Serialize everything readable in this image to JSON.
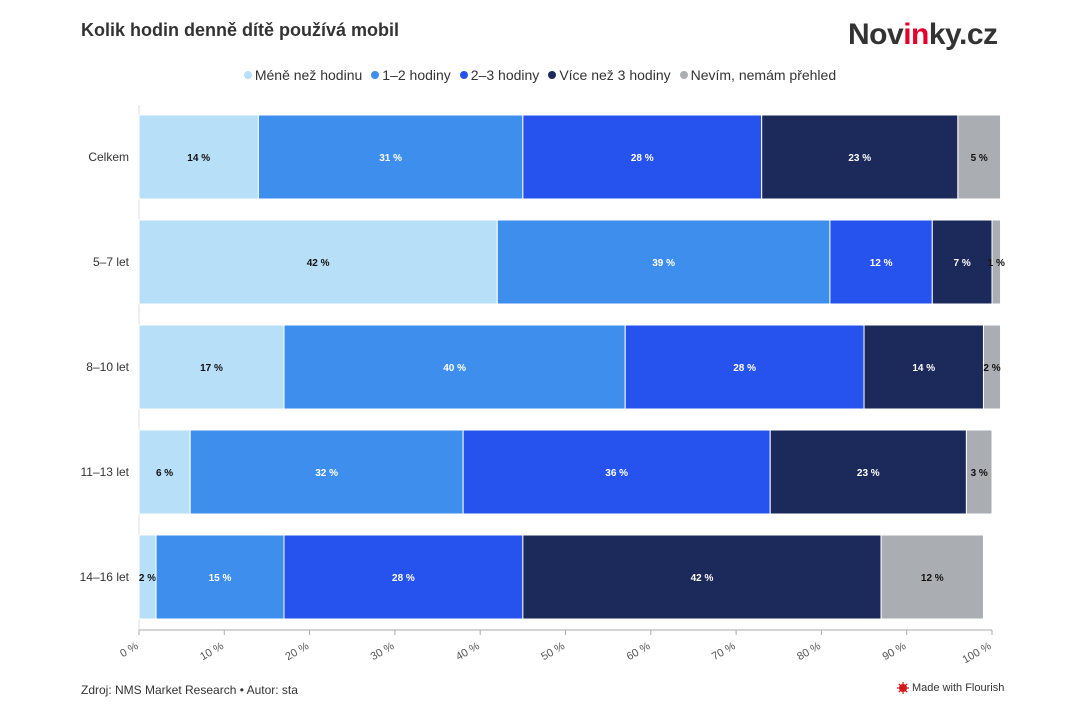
{
  "title": "Kolik hodin denně dítě používá mobil",
  "brand": {
    "prefix": "Nov",
    "accent": "in",
    "suffix": "ky.cz"
  },
  "source": "Zdroj: NMS Market Research • Autor: sta",
  "made_with": "Made with Flourish",
  "colors": {
    "text": "#333333",
    "axis": "#aaaaaa",
    "grid": "#e6e6e6",
    "brand_accent": "#e4002b"
  },
  "chart_data": {
    "type": "bar",
    "orientation": "horizontal",
    "stacked": true,
    "title": "Kolik hodin denně dítě používá mobil",
    "categories": [
      "Celkem",
      "5–7 let",
      "8–10 let",
      "11–13 let",
      "14–16 let"
    ],
    "xlim": [
      0,
      100
    ],
    "x_ticks": [
      "0 %",
      "10 %",
      "20 %",
      "30 %",
      "40 %",
      "50 %",
      "60 %",
      "70 %",
      "80 %",
      "90 %",
      "100 %"
    ],
    "legend_position": "top",
    "grid": false,
    "series": [
      {
        "name": "Méně než hodinu",
        "color": "#b7dff7",
        "label_color": "#111111",
        "values": [
          14,
          42,
          17,
          6,
          2
        ],
        "labels": [
          "14 %",
          "42 %",
          "17 %",
          "6 %",
          "2 %"
        ]
      },
      {
        "name": "1–2 hodiny",
        "color": "#3d8eed",
        "label_color": "#ffffff",
        "values": [
          31,
          39,
          40,
          32,
          15
        ],
        "labels": [
          "31 %",
          "39 %",
          "40 %",
          "32 %",
          "15 %"
        ]
      },
      {
        "name": "2–3 hodiny",
        "color": "#2653ee",
        "label_color": "#ffffff",
        "values": [
          28,
          12,
          28,
          36,
          28
        ],
        "labels": [
          "28 %",
          "12 %",
          "28 %",
          "36 %",
          "28 %"
        ]
      },
      {
        "name": "Více než 3 hodiny",
        "color": "#1b2a5b",
        "label_color": "#ffffff",
        "values": [
          23,
          7,
          14,
          23,
          42
        ],
        "labels": [
          "23 %",
          "7 %",
          "14 %",
          "23 %",
          "42 %"
        ]
      },
      {
        "name": "Nevím, nemám přehled",
        "color": "#aaaeb3",
        "label_color": "#111111",
        "values": [
          5,
          1,
          2,
          3,
          12
        ],
        "labels": [
          "5 %",
          "1 %",
          "2 %",
          "3 %",
          "12 %"
        ]
      }
    ]
  }
}
